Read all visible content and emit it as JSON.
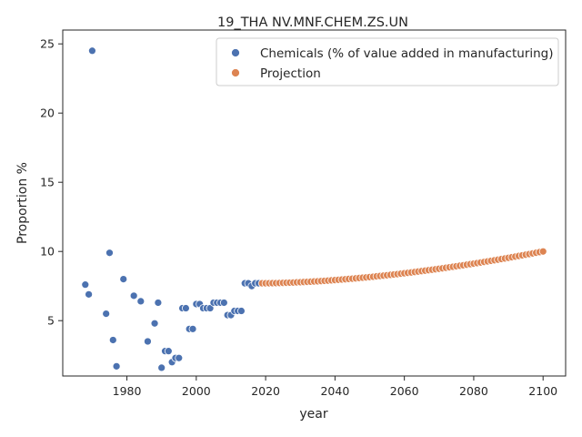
{
  "chart_data": {
    "type": "scatter",
    "title": "19_THA NV.MNF.CHEM.ZS.UN",
    "xlabel": "year",
    "ylabel": "Proportion %",
    "xlim": [
      1961.5,
      2106.5
    ],
    "ylim": [
      1.0,
      26.0
    ],
    "xticks": [
      1980,
      2000,
      2020,
      2040,
      2060,
      2080,
      2100
    ],
    "yticks": [
      5,
      10,
      15,
      20,
      25
    ],
    "grid": false,
    "legend_position": "top-right",
    "series": [
      {
        "name": "Chemicals (% of value added in manufacturing)",
        "color": "#4c72b0",
        "points": [
          [
            1968,
            7.6
          ],
          [
            1969,
            6.9
          ],
          [
            1970,
            24.5
          ],
          [
            1974,
            5.5
          ],
          [
            1975,
            9.9
          ],
          [
            1976,
            3.6
          ],
          [
            1977,
            1.7
          ],
          [
            1979,
            8.0
          ],
          [
            1982,
            6.8
          ],
          [
            1984,
            6.4
          ],
          [
            1986,
            3.5
          ],
          [
            1988,
            4.8
          ],
          [
            1989,
            6.3
          ],
          [
            1990,
            1.6
          ],
          [
            1991,
            2.8
          ],
          [
            1992,
            2.8
          ],
          [
            1993,
            2.0
          ],
          [
            1994,
            2.3
          ],
          [
            1995,
            2.3
          ],
          [
            1996,
            5.9
          ],
          [
            1997,
            5.9
          ],
          [
            1998,
            4.4
          ],
          [
            1999,
            4.4
          ],
          [
            2000,
            6.2
          ],
          [
            2001,
            6.2
          ],
          [
            2002,
            5.9
          ],
          [
            2003,
            5.9
          ],
          [
            2004,
            5.9
          ],
          [
            2005,
            6.3
          ],
          [
            2006,
            6.3
          ],
          [
            2007,
            6.3
          ],
          [
            2008,
            6.3
          ],
          [
            2009,
            5.4
          ],
          [
            2010,
            5.4
          ],
          [
            2011,
            5.7
          ],
          [
            2012,
            5.7
          ],
          [
            2013,
            5.7
          ],
          [
            2014,
            7.7
          ],
          [
            2015,
            7.7
          ],
          [
            2016,
            7.5
          ],
          [
            2017,
            7.7
          ],
          [
            2018,
            7.7
          ]
        ]
      },
      {
        "name": "Projection",
        "color": "#dd8452",
        "start_year": 2019,
        "end_year": 2100,
        "start_value": 7.7,
        "end_value": 10.0,
        "curve_exponent": 1.7
      }
    ]
  }
}
